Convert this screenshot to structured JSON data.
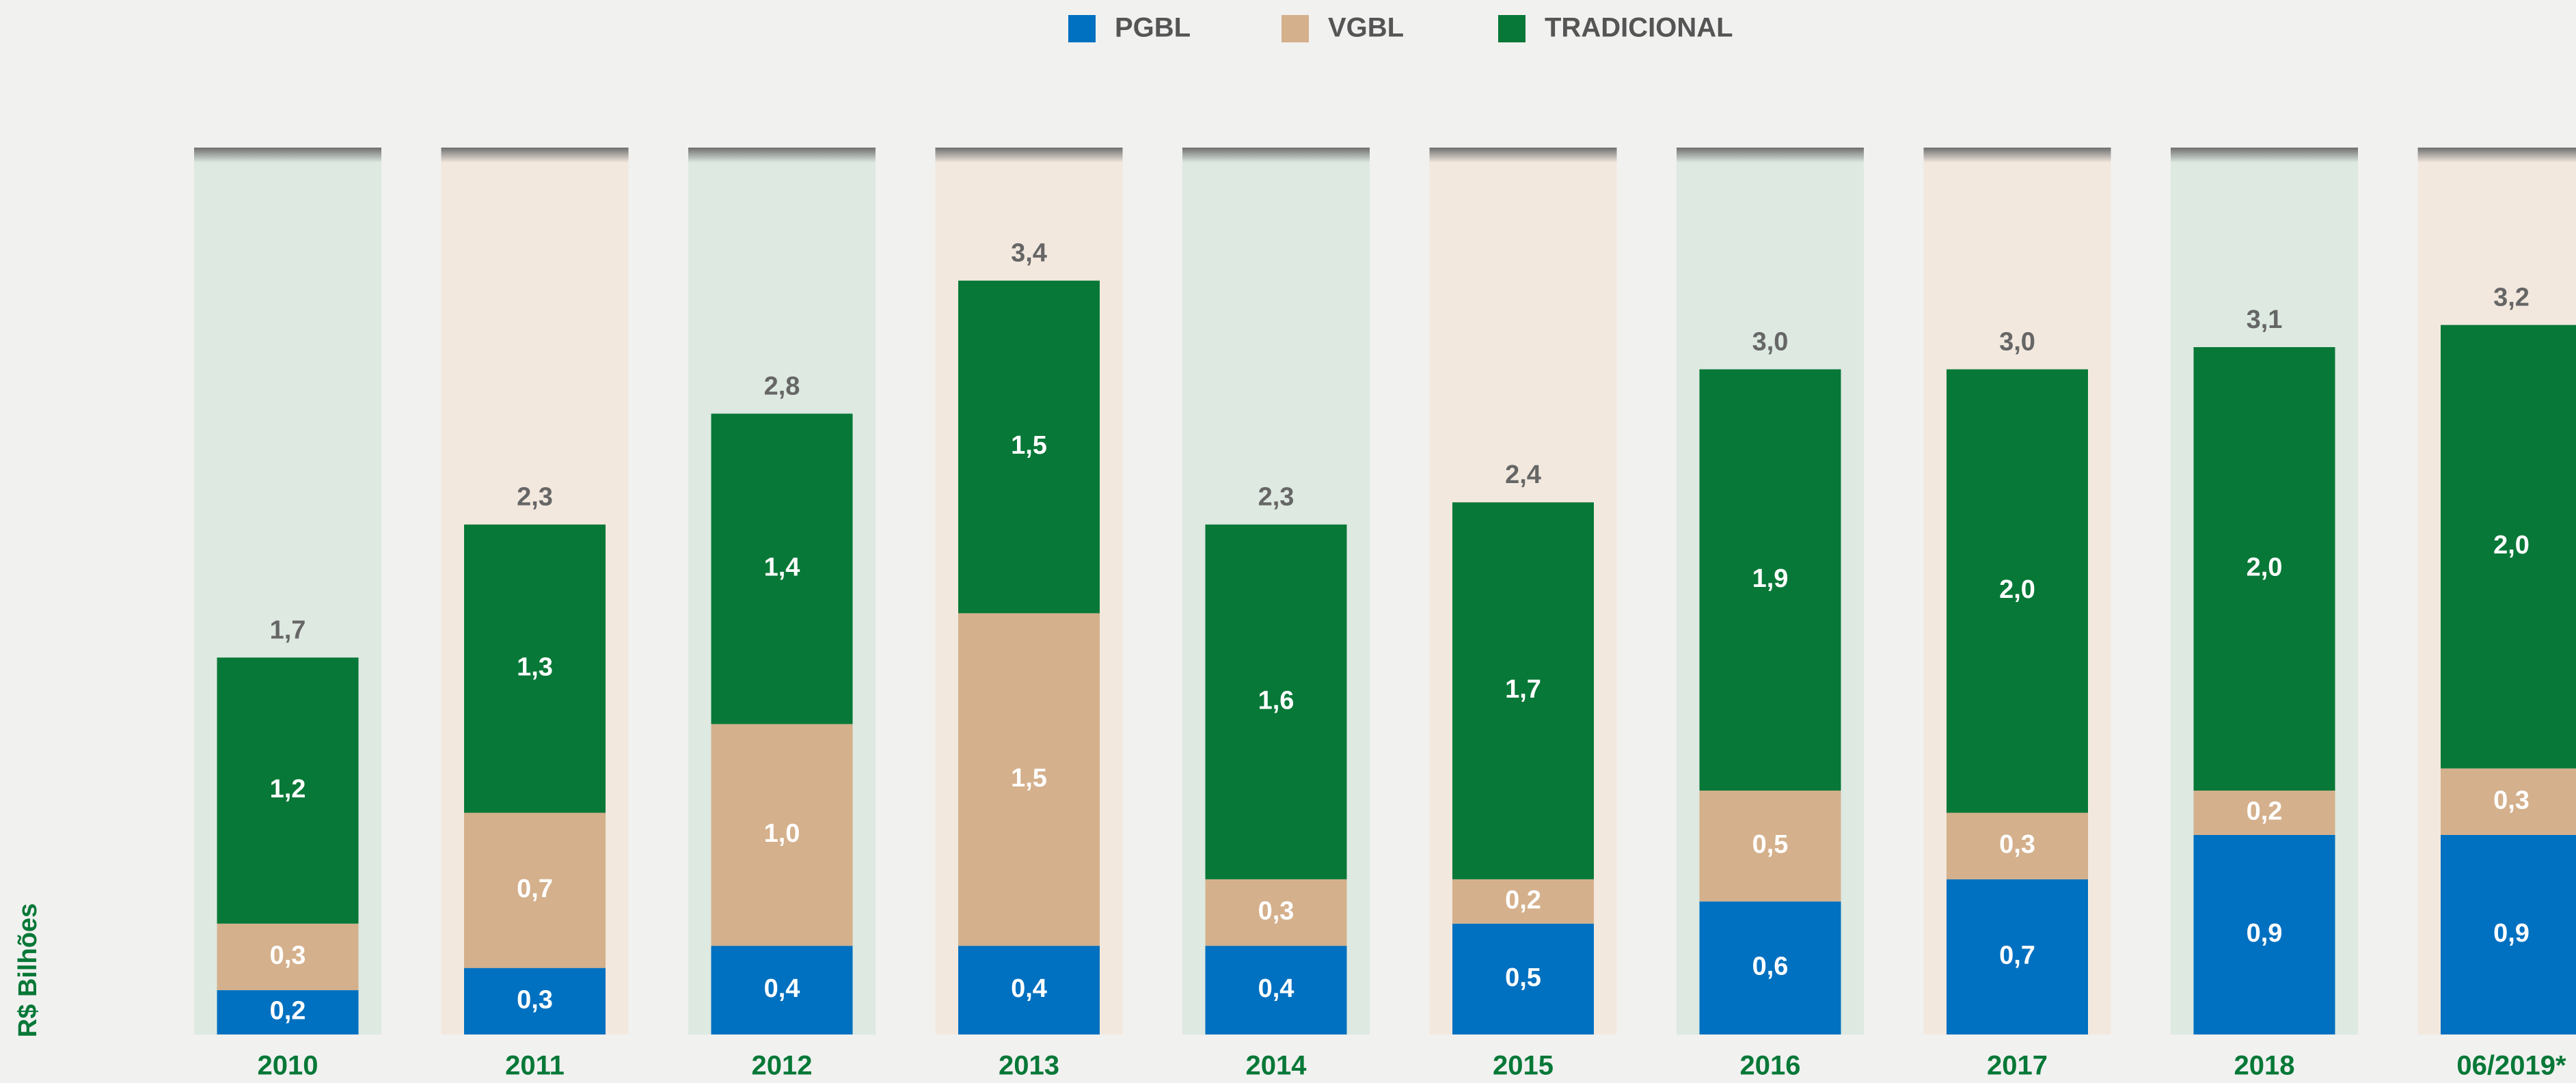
{
  "chart_data": {
    "type": "bar",
    "stacked": true,
    "y_label": "R$ Bilhões",
    "categories": [
      "2010",
      "2011",
      "2012",
      "2013",
      "2014",
      "2015",
      "2016",
      "2017",
      "2018",
      "06/2019*"
    ],
    "series": [
      {
        "name": "PGBL",
        "color": "#0070c0",
        "values": [
          0.2,
          0.3,
          0.4,
          0.4,
          0.4,
          0.5,
          0.6,
          0.7,
          0.9,
          0.9
        ],
        "value_labels": [
          "0,2",
          "0,3",
          "0,4",
          "0,4",
          "0,4",
          "0,5",
          "0,6",
          "0,7",
          "0,9",
          "0,9"
        ]
      },
      {
        "name": "VGBL",
        "color": "#d4b08c",
        "values": [
          0.3,
          0.7,
          1.0,
          1.5,
          0.3,
          0.2,
          0.5,
          0.3,
          0.2,
          0.3
        ],
        "value_labels": [
          "0,3",
          "0,7",
          "1,0",
          "1,5",
          "0,3",
          "0,2",
          "0,5",
          "0,3",
          "0,2",
          "0,3"
        ]
      },
      {
        "name": "TRADICIONAL",
        "color": "#077837",
        "values": [
          1.2,
          1.3,
          1.4,
          1.5,
          1.6,
          1.7,
          1.9,
          2.0,
          2.0,
          2.0
        ],
        "value_labels": [
          "1,2",
          "1,3",
          "1,4",
          "1,5",
          "1,6",
          "1,7",
          "1,9",
          "2,0",
          "2,0",
          "2,0"
        ]
      }
    ],
    "totals": [
      1.7,
      2.3,
      2.8,
      3.4,
      2.3,
      2.4,
      3.0,
      3.0,
      3.1,
      3.2
    ],
    "total_labels": [
      "1,7",
      "2,3",
      "2,8",
      "3,4",
      "2,3",
      "2,4",
      "3,0",
      "3,0",
      "3,1",
      "3,2"
    ],
    "ylim": [
      0,
      4
    ]
  }
}
